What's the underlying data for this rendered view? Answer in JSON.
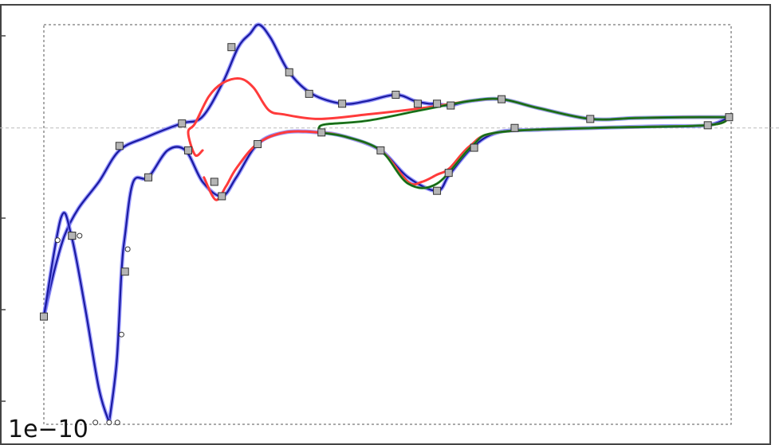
{
  "chart_data": {
    "type": "line",
    "title": "",
    "xlabel": "",
    "ylabel": "",
    "offset_text": "1e−10",
    "grid": false,
    "zero_line": true,
    "xlim": [
      0,
      100
    ],
    "ylim": [
      -3.3,
      1.15
    ],
    "series": [
      {
        "color": "#1a1aa0",
        "segments": [
          [
            [
              0,
              -2.1
            ],
            [
              1.5,
              -1.6
            ],
            [
              3,
              -1.2
            ],
            [
              5,
              -0.9
            ],
            [
              8,
              -0.6
            ],
            [
              11,
              -0.25
            ],
            [
              15,
              -0.1
            ],
            [
              20,
              0.05
            ],
            [
              23,
              0.12
            ],
            [
              26,
              0.5
            ],
            [
              28.3,
              0.9
            ],
            [
              30,
              1.05
            ],
            [
              31.3,
              1.15
            ],
            [
              33,
              1.0
            ],
            [
              35.7,
              0.62
            ],
            [
              39,
              0.38
            ],
            [
              43.4,
              0.27
            ],
            [
              47,
              0.3
            ],
            [
              51.2,
              0.37
            ],
            [
              54,
              0.3
            ],
            [
              56,
              0.27
            ],
            [
              57.2,
              0.27
            ],
            [
              59,
              0.25
            ],
            [
              62,
              0.3
            ],
            [
              66.6,
              0.32
            ],
            [
              72,
              0.22
            ],
            [
              79.5,
              0.1
            ],
            [
              86,
              0.11
            ],
            [
              93,
              0.12
            ],
            [
              99.7,
              0.12
            ]
          ],
          [
            [
              9.5,
              -3.28
            ],
            [
              10.6,
              -2.6
            ],
            [
              11.3,
              -1.6
            ],
            [
              11.8,
              -1.2
            ],
            [
              13,
              -0.6
            ],
            [
              15.2,
              -0.55
            ],
            [
              18,
              -0.25
            ],
            [
              20.6,
              -0.25
            ],
            [
              23.1,
              -0.6
            ],
            [
              25.9,
              -0.76
            ],
            [
              28,
              -0.55
            ],
            [
              31.1,
              -0.18
            ],
            [
              35,
              -0.05
            ],
            [
              40,
              -0.05
            ],
            [
              44,
              -0.1
            ],
            [
              49,
              -0.25
            ],
            [
              53,
              -0.55
            ],
            [
              57.2,
              -0.7
            ],
            [
              59,
              -0.52
            ],
            [
              62.3,
              -0.22
            ],
            [
              66,
              -0.05
            ],
            [
              72,
              -0.02
            ],
            [
              80,
              0
            ],
            [
              90,
              0.02
            ],
            [
              96.6,
              0.03
            ],
            [
              99.7,
              0.12
            ]
          ],
          [
            [
              0,
              -2.1
            ],
            [
              2.5,
              -1.0
            ],
            [
              4,
              -1.2
            ],
            [
              6,
              -2.0
            ],
            [
              8,
              -2.9
            ],
            [
              9.5,
              -3.28
            ]
          ]
        ]
      },
      {
        "color": "#ff3b3b",
        "segments": [
          [
            [
              23.1,
              -0.25
            ],
            [
              22,
              -0.3
            ],
            [
              21,
              -0.05
            ],
            [
              22,
              0.05
            ],
            [
              24,
              0.35
            ],
            [
              26,
              0.5
            ],
            [
              28.5,
              0.55
            ],
            [
              30.5,
              0.45
            ],
            [
              32.7,
              0.2
            ],
            [
              35,
              0.15
            ],
            [
              40,
              0.1
            ],
            [
              47,
              0.15
            ],
            [
              55,
              0.22
            ],
            [
              62,
              0.3
            ],
            [
              66.6,
              0.32
            ],
            [
              72,
              0.22
            ],
            [
              79.5,
              0.1
            ],
            [
              86,
              0.11
            ],
            [
              93,
              0.12
            ],
            [
              99.7,
              0.12
            ]
          ],
          [
            [
              23.3,
              -0.55
            ],
            [
              25,
              -0.8
            ],
            [
              26.5,
              -0.65
            ],
            [
              28,
              -0.45
            ],
            [
              31,
              -0.18
            ],
            [
              35,
              -0.05
            ],
            [
              40,
              -0.05
            ],
            [
              44,
              -0.1
            ],
            [
              49,
              -0.25
            ],
            [
              53,
              -0.6
            ],
            [
              55,
              -0.6
            ],
            [
              57.2,
              -0.52
            ],
            [
              59,
              -0.45
            ],
            [
              62,
              -0.2
            ],
            [
              66,
              -0.05
            ],
            [
              80,
              0
            ],
            [
              96.6,
              0.03
            ],
            [
              99.7,
              0.12
            ]
          ]
        ]
      },
      {
        "color": "#2a9a2a",
        "segments": [
          [
            [
              40,
              0.0
            ],
            [
              41,
              0.04
            ],
            [
              47,
              0.08
            ],
            [
              55,
              0.2
            ],
            [
              62,
              0.3
            ],
            [
              66.6,
              0.32
            ],
            [
              72,
              0.22
            ],
            [
              79.5,
              0.1
            ],
            [
              86,
              0.11
            ],
            [
              93,
              0.12
            ],
            [
              99.7,
              0.12
            ]
          ],
          [
            [
              40,
              -0.05
            ],
            [
              44,
              -0.1
            ],
            [
              49,
              -0.25
            ],
            [
              53,
              -0.62
            ],
            [
              57.2,
              -0.62
            ],
            [
              62.3,
              -0.2
            ],
            [
              66,
              -0.05
            ],
            [
              80,
              0
            ],
            [
              96.6,
              0.03
            ],
            [
              99.7,
              0.12
            ]
          ]
        ]
      }
    ],
    "control_points": {
      "square": [
        [
          0,
          -2.1
        ],
        [
          4.1,
          -1.2
        ],
        [
          11,
          -0.2
        ],
        [
          20.1,
          0.05
        ],
        [
          27.3,
          0.9
        ],
        [
          35.7,
          0.62
        ],
        [
          38.6,
          0.38
        ],
        [
          43.4,
          0.27
        ],
        [
          51.2,
          0.37
        ],
        [
          54.4,
          0.27
        ],
        [
          57.2,
          0.27
        ],
        [
          59.2,
          0.25
        ],
        [
          66.6,
          0.32
        ],
        [
          79.5,
          0.1
        ],
        [
          99.7,
          0.12
        ],
        [
          15.2,
          -0.55
        ],
        [
          11.8,
          -1.6
        ],
        [
          25.9,
          -0.76
        ],
        [
          40.4,
          -0.05
        ],
        [
          49,
          -0.25
        ],
        [
          58.9,
          -0.5
        ],
        [
          62.6,
          -0.22
        ],
        [
          68.5,
          0
        ],
        [
          96.6,
          0.03
        ],
        [
          31.1,
          -0.18
        ],
        [
          57.2,
          -0.7
        ],
        [
          21,
          -0.25
        ],
        [
          24.8,
          -0.6
        ],
        [
          4.1,
          -1.2
        ]
      ],
      "circle": [
        [
          2,
          -1.25
        ],
        [
          5.2,
          -1.2
        ],
        [
          12.2,
          -1.35
        ],
        [
          11.3,
          -2.3
        ],
        [
          7.5,
          -3.28
        ],
        [
          10.7,
          -3.28
        ],
        [
          9.5,
          -3.28
        ]
      ]
    }
  }
}
